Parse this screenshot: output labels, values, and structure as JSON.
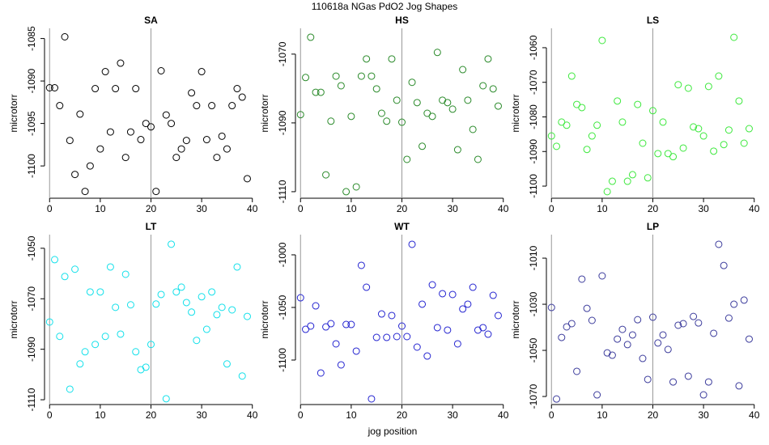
{
  "title": "110618a   NGas PdO2 Jog Shapes",
  "x_label": "jog position",
  "chart_data": [
    {
      "type": "scatter",
      "title": "SA",
      "y_label": "microtorr",
      "color": "#000000",
      "x": [
        0,
        1,
        2,
        3,
        4,
        5,
        6,
        7,
        8,
        9,
        10,
        11,
        12,
        13,
        14,
        15,
        16,
        17,
        18,
        19,
        20,
        21,
        22,
        23,
        24,
        25,
        26,
        27,
        28,
        29,
        30,
        31,
        32,
        33,
        34,
        35,
        36,
        37,
        38,
        39
      ],
      "values": [
        -1090.8,
        -1090.8,
        -1092.9,
        -1084.8,
        -1097,
        -1101,
        -1093.9,
        -1103,
        -1100,
        -1090.9,
        -1098,
        -1088.9,
        -1096,
        -1090.9,
        -1087.9,
        -1099,
        -1096,
        -1090.9,
        -1096.9,
        -1095,
        -1095.4,
        -1103,
        -1088.8,
        -1094,
        -1095,
        -1099,
        -1098,
        -1097,
        -1091.4,
        -1092.9,
        -1088.9,
        -1096.9,
        -1092.9,
        -1099,
        -1096.5,
        -1098,
        -1092.9,
        -1090.9,
        -1091.9,
        -1101.5
      ],
      "xlim": [
        -1,
        41
      ],
      "xticks": [
        0,
        10,
        20,
        30,
        40
      ],
      "ylim": [
        -1103.8,
        -1083.8
      ],
      "yticks": [
        -1100,
        -1095,
        -1090,
        -1085
      ],
      "vlines": [
        0,
        20
      ]
    },
    {
      "type": "scatter",
      "title": "HS",
      "y_label": "microtorr",
      "color": "#2a8a2a",
      "x": [
        0,
        1,
        2,
        3,
        4,
        5,
        6,
        7,
        8,
        9,
        10,
        11,
        12,
        13,
        14,
        15,
        16,
        17,
        18,
        19,
        20,
        21,
        22,
        23,
        24,
        25,
        26,
        27,
        28,
        29,
        30,
        31,
        32,
        33,
        34,
        35,
        36,
        37,
        38,
        39
      ],
      "values": [
        -1087.6,
        -1076.8,
        -1065.1,
        -1081.1,
        -1081.1,
        -1105.1,
        -1089.5,
        -1076.4,
        -1079.2,
        -1110,
        -1088.1,
        -1108.6,
        -1076.4,
        -1071.4,
        -1076.4,
        -1080.1,
        -1087.2,
        -1089.5,
        -1071.4,
        -1083.4,
        -1089.8,
        -1100.6,
        -1078.2,
        -1084.1,
        -1096.8,
        -1087.2,
        -1088.1,
        -1069.5,
        -1083.4,
        -1084.1,
        -1086,
        -1097.8,
        -1074.5,
        -1083.4,
        -1091.9,
        -1100.6,
        -1079.2,
        -1071.4,
        -1080.1,
        -1085.1
      ],
      "xlim": [
        -1,
        41
      ],
      "xticks": [
        0,
        10,
        20,
        30,
        40
      ],
      "ylim": [
        -1111.9,
        -1062.5
      ],
      "yticks": [
        -1110,
        -1090,
        -1070
      ],
      "vlines": [
        0,
        20
      ]
    },
    {
      "type": "scatter",
      "title": "LS",
      "y_label": "microtorr",
      "color": "#3de83d",
      "x": [
        0,
        1,
        2,
        3,
        4,
        5,
        6,
        7,
        8,
        9,
        10,
        11,
        12,
        13,
        14,
        15,
        16,
        17,
        18,
        19,
        20,
        21,
        22,
        23,
        24,
        25,
        26,
        27,
        28,
        29,
        30,
        31,
        32,
        33,
        34,
        35,
        36,
        37,
        38,
        39
      ],
      "values": [
        -1085.5,
        -1088.5,
        -1081.5,
        -1082.4,
        -1068.2,
        -1076.4,
        -1077.3,
        -1089.4,
        -1085.5,
        -1082.4,
        -1057.9,
        -1101.6,
        -1098.6,
        -1075.4,
        -1081.5,
        -1098.6,
        -1096.7,
        -1076.4,
        -1087.6,
        -1097.6,
        -1078.2,
        -1090.6,
        -1081.5,
        -1090.6,
        -1091.5,
        -1070.7,
        -1089,
        -1071.7,
        -1082.9,
        -1083.4,
        -1085.5,
        -1071.2,
        -1089.9,
        -1068.2,
        -1088,
        -1083.8,
        -1057,
        -1075.4,
        -1087.6,
        -1083.4
      ],
      "xlim": [
        -1,
        41
      ],
      "xticks": [
        0,
        10,
        20,
        30,
        40
      ],
      "ylim": [
        -1103.5,
        -1054.4
      ],
      "yticks": [
        -1100,
        -1090,
        -1080,
        -1070,
        -1060
      ],
      "vlines": [
        0,
        20
      ]
    },
    {
      "type": "scatter",
      "title": "LT",
      "y_label": "microtorr",
      "color": "#12e0ea",
      "x": [
        0,
        1,
        2,
        3,
        4,
        5,
        6,
        7,
        8,
        9,
        10,
        11,
        12,
        13,
        14,
        15,
        16,
        17,
        18,
        19,
        20,
        21,
        22,
        23,
        24,
        25,
        26,
        27,
        28,
        29,
        30,
        31,
        32,
        33,
        34,
        35,
        36,
        37,
        38,
        39
      ],
      "values": [
        -1079.2,
        -1054.5,
        -1084.9,
        -1061.2,
        -1105.8,
        -1058.3,
        -1095.8,
        -1091,
        -1067.3,
        -1088.1,
        -1067.3,
        -1084.9,
        -1057.4,
        -1073.4,
        -1084,
        -1060.3,
        -1072.4,
        -1091,
        -1098.1,
        -1097.1,
        -1088.1,
        -1072.1,
        -1068.3,
        -1109.6,
        -1048.4,
        -1067.3,
        -1065.4,
        -1071.5,
        -1075.3,
        -1086.5,
        -1069.2,
        -1082.1,
        -1067.3,
        -1076.3,
        -1073.4,
        -1095.8,
        -1074.4,
        -1057.4,
        -1100.6,
        -1077
      ],
      "xlim": [
        -1,
        41
      ],
      "xticks": [
        0,
        10,
        20,
        30,
        40
      ],
      "ylim": [
        -1111.9,
        -1044.6
      ],
      "yticks": [
        -1110,
        -1090,
        -1070,
        -1050
      ],
      "vlines": [
        0,
        20
      ]
    },
    {
      "type": "scatter",
      "title": "WT",
      "y_label": "microtorr",
      "color": "#2424d0",
      "x": [
        0,
        1,
        2,
        3,
        4,
        5,
        6,
        7,
        8,
        9,
        10,
        11,
        12,
        13,
        14,
        15,
        16,
        17,
        18,
        19,
        20,
        21,
        22,
        23,
        24,
        25,
        26,
        27,
        28,
        29,
        30,
        31,
        32,
        33,
        34,
        35,
        36,
        37,
        38,
        39
      ],
      "values": [
        -1040.8,
        -1070.8,
        -1067.7,
        -1048.5,
        -1112.3,
        -1068.5,
        -1065.4,
        -1084.6,
        -1104.6,
        -1066.2,
        -1066.2,
        -1091.5,
        -1010,
        -1030.8,
        -1136.9,
        -1078.5,
        -1056.2,
        -1078.5,
        -1057.7,
        -1077.7,
        -1067.7,
        -1077.7,
        -990,
        -1087.7,
        -1046.9,
        -1096.2,
        -1028.5,
        -1069.2,
        -1036.9,
        -1071.5,
        -1037.7,
        -1084.6,
        -1051.5,
        -1046.9,
        -1030.8,
        -1071.5,
        -1069.2,
        -1075.4,
        -1038.5,
        -1057.7
      ],
      "xlim": [
        -1,
        41
      ],
      "xticks": [
        0,
        10,
        20,
        30,
        40
      ],
      "ylim": [
        -1142.3,
        -980.8
      ],
      "yticks": [
        -1100,
        -1050,
        -1000
      ],
      "vlines": [
        0,
        20
      ]
    },
    {
      "type": "scatter",
      "title": "LP",
      "y_label": "microtorr",
      "color": "#3c3c9c",
      "x": [
        0,
        1,
        2,
        3,
        4,
        5,
        6,
        7,
        8,
        9,
        10,
        11,
        12,
        13,
        14,
        15,
        16,
        17,
        18,
        19,
        20,
        21,
        22,
        23,
        24,
        25,
        26,
        27,
        28,
        29,
        30,
        31,
        32,
        33,
        34,
        35,
        36,
        37,
        38,
        39
      ],
      "values": [
        -1031.4,
        -1071.1,
        -1044.4,
        -1039.8,
        -1038.4,
        -1059.1,
        -1019.1,
        -1031.8,
        -1037,
        -1069.3,
        -1017.7,
        -1051.1,
        -1052.1,
        -1045.1,
        -1040.9,
        -1047.5,
        -1043.3,
        -1036.7,
        -1053.5,
        -1062.6,
        -1035.6,
        -1046.8,
        -1043.3,
        -1049.6,
        -1063.7,
        -1039.1,
        -1038.4,
        -1061.2,
        -1035.3,
        -1038.1,
        -1069.3,
        -1063.7,
        -1042.6,
        -1004,
        -1013.2,
        -1036,
        -1030,
        -1065.4,
        -1028.2,
        -1045.1
      ],
      "xlim": [
        -1,
        41
      ],
      "xticks": [
        0,
        10,
        20,
        30,
        40
      ],
      "ylim": [
        -1073.5,
        -999.8
      ],
      "yticks": [
        -1070,
        -1050,
        -1030,
        -1010
      ],
      "vlines": [
        0,
        20
      ]
    }
  ]
}
